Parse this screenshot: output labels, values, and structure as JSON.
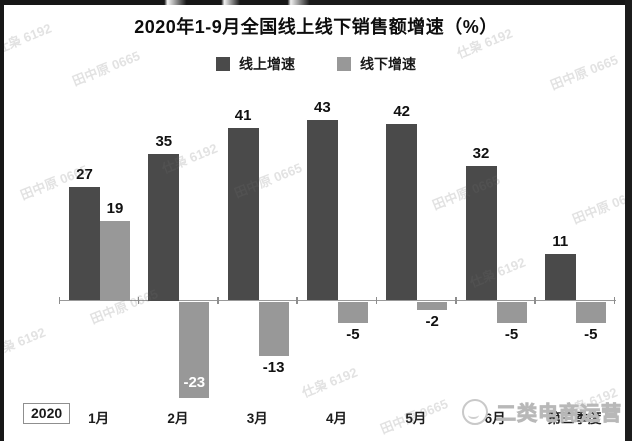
{
  "chart_data": {
    "type": "bar",
    "title": "2020年1-9月全国线上线下销售额增速（%）",
    "categories": [
      "1月",
      "2月",
      "3月",
      "4月",
      "5月",
      "6月",
      "第三季度"
    ],
    "x_axis_year_label": "2020",
    "series": [
      {
        "name": "线上增速",
        "color": "#4a4a4a",
        "values": [
          27,
          35,
          41,
          43,
          42,
          32,
          11
        ]
      },
      {
        "name": "线下增速",
        "color": "#989898",
        "values": [
          19,
          -23,
          -13,
          -5,
          -2,
          -5,
          -5
        ]
      }
    ],
    "ylim": [
      -30,
      50
    ],
    "grid": false,
    "legend_position": "top-center",
    "axis_color": "#999999",
    "value_label_color": "#111111",
    "value_label_inside_color": "#ffffff"
  },
  "watermarks": {
    "diagonal_texts": [
      "仕枭 6192",
      "田中原 0665"
    ],
    "channel": {
      "label": "二类电商运营",
      "icon": "mascot-circle-icon"
    }
  }
}
